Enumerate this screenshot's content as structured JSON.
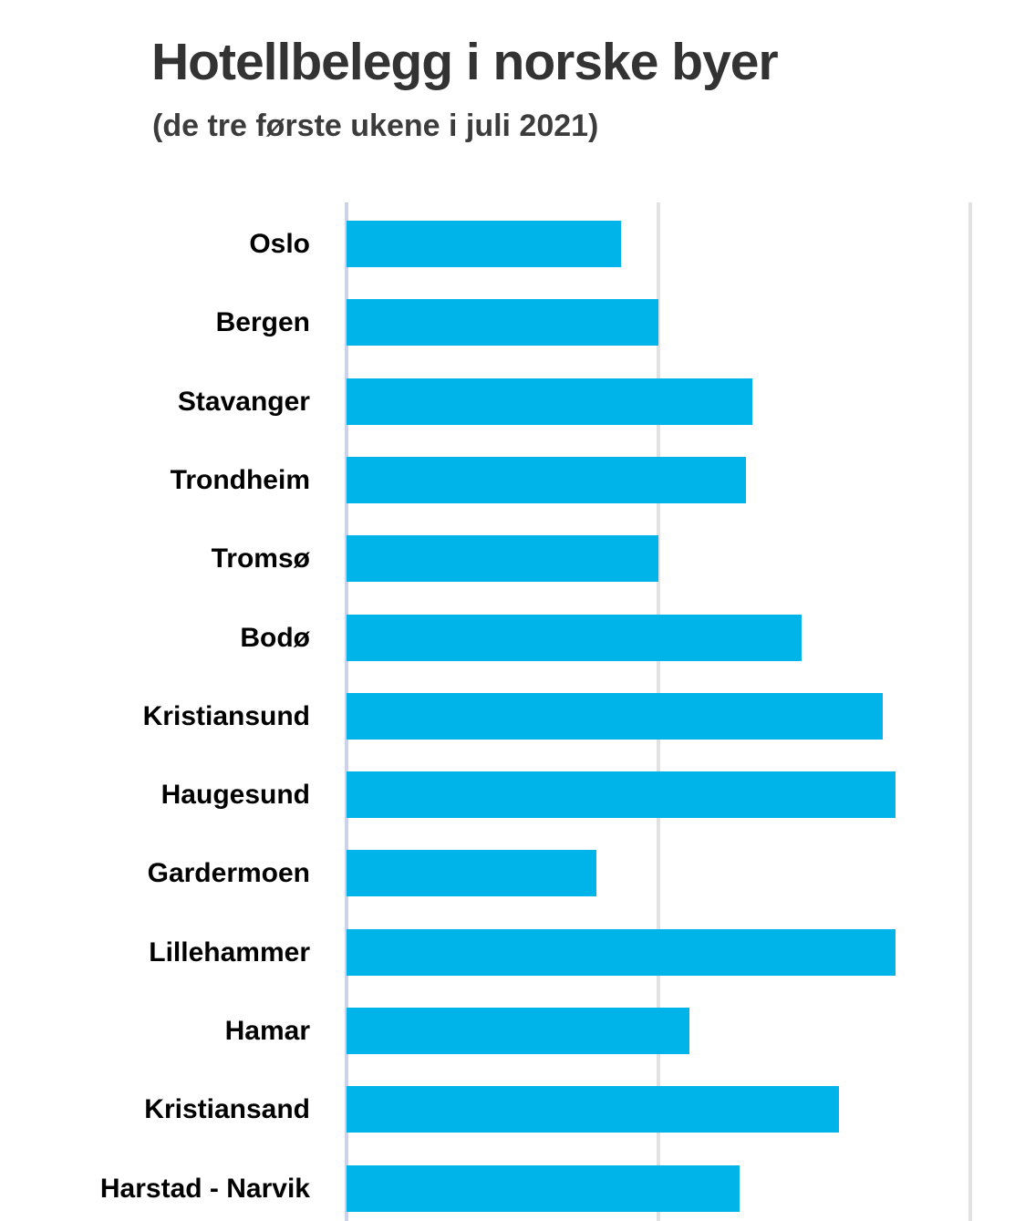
{
  "header": {
    "title": "Hotellbelegg i norske byer",
    "subtitle": "(de tre første ukene i juli 2021)",
    "title_color": "#333333",
    "subtitle_color": "#3c3c3c"
  },
  "chart_data": {
    "type": "bar",
    "orientation": "horizontal",
    "title": "Hotellbelegg i norske byer",
    "subtitle": "(de tre første ukene i juli 2021)",
    "categories": [
      "Oslo",
      "Bergen",
      "Stavanger",
      "Trondheim",
      "Tromsø",
      "Bodø",
      "Kristiansund",
      "Haugesund",
      "Gardermoen",
      "Lillehammer",
      "Hamar",
      "Kristiansand",
      "Harstad - Narvik"
    ],
    "values": [
      44,
      50,
      65,
      64,
      50,
      73,
      86,
      88,
      40,
      88,
      55,
      79,
      63
    ],
    "xlabel": "",
    "ylabel": "",
    "xlim": [
      0,
      100
    ],
    "gridlines_x": [
      0,
      50,
      100
    ],
    "tick_labels_visible": false,
    "legend": "none",
    "grid": "vertical-only",
    "bar_color": "#00b4ea",
    "axis_line_color": "#ccd3e8",
    "gridline_color": "#e2e2e2",
    "label_color": "#000000"
  }
}
